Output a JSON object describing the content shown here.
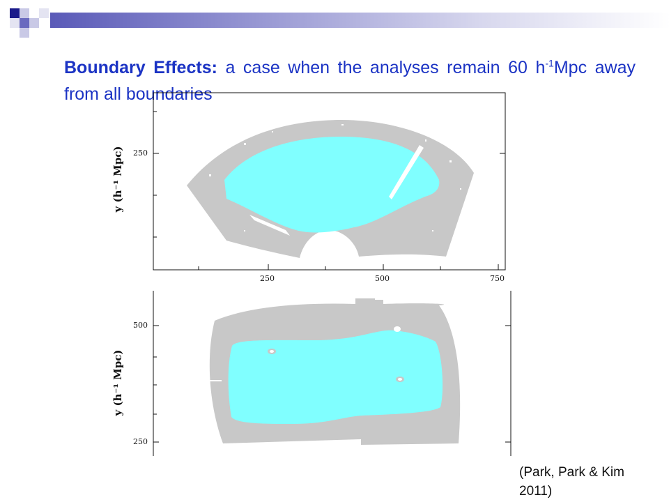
{
  "slide": {
    "title_bold": "Boundary Effects:",
    "title_rest_1": " a case when the analyses remain 60 h",
    "title_sup": "-1",
    "title_rest_2": "Mpc away from all boundaries",
    "citation": "(Park, Park & Kim 2011)"
  },
  "top_panel": {
    "ylabel": "y (h⁻¹ Mpc)",
    "y_ticks": [
      "250"
    ],
    "x_ticks": [
      "250",
      "500",
      "750"
    ]
  },
  "bottom_panel": {
    "ylabel": "y (h⁻¹ Mpc)",
    "y_ticks": [
      "500",
      "250"
    ]
  },
  "colors": {
    "title": "#1b33c4",
    "survey_region": "#c8c8c8",
    "analysis_region": "#80ffff",
    "decor_dark": "#1a1a8a",
    "decor_mid": "#6a6abf",
    "decor_light": "#c9c9e6"
  }
}
